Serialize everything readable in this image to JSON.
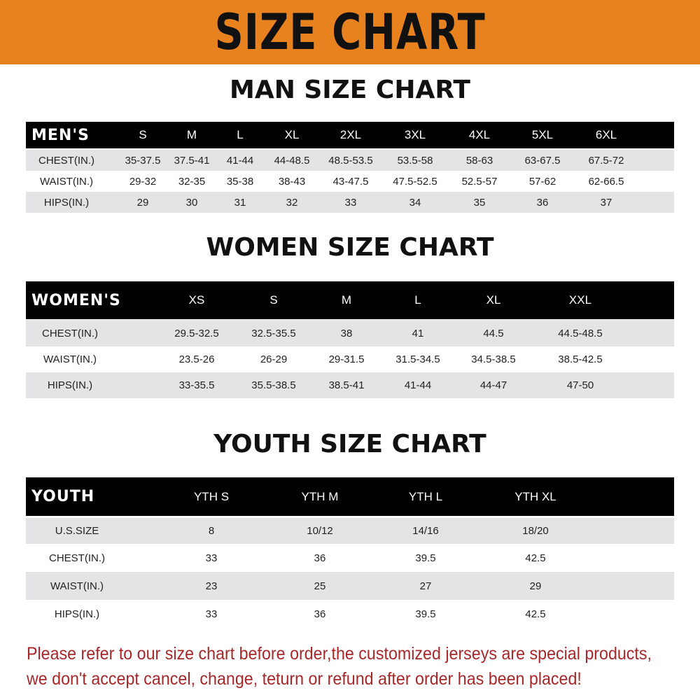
{
  "banner_title": "SIZE CHART",
  "colors": {
    "banner": "#e8821e",
    "header_row": "#000000",
    "stripe": "#e4e4e6",
    "note_text": "#a8282a"
  },
  "men": {
    "title": "MAN SIZE CHART",
    "header": [
      "MEN'S",
      "S",
      "M",
      "L",
      "XL",
      "2XL",
      "3XL",
      "4XL",
      "5XL",
      "6XL"
    ],
    "rows": [
      [
        "CHEST(IN.)",
        "35-37.5",
        "37.5-41",
        "41-44",
        "44-48.5",
        "48.5-53.5",
        "53.5-58",
        "58-63",
        "63-67.5",
        "67.5-72"
      ],
      [
        "WAIST(IN.)",
        "29-32",
        "32-35",
        "35-38",
        "38-43",
        "43-47.5",
        "47.5-52.5",
        "52.5-57",
        "57-62",
        "62-66.5"
      ],
      [
        "HIPS(IN.)",
        "29",
        "30",
        "31",
        "32",
        "33",
        "34",
        "35",
        "36",
        "37"
      ]
    ]
  },
  "women": {
    "title": "WOMEN SIZE CHART",
    "header": [
      "WOMEN'S",
      "XS",
      "S",
      "M",
      "L",
      "XL",
      "XXL"
    ],
    "rows": [
      [
        "CHEST(IN.)",
        "29.5-32.5",
        "32.5-35.5",
        "38",
        "41",
        "44.5",
        "44.5-48.5"
      ],
      [
        "WAIST(IN.)",
        "23.5-26",
        "26-29",
        "29-31.5",
        "31.5-34.5",
        "34.5-38.5",
        "38.5-42.5"
      ],
      [
        "HIPS(IN.)",
        "33-35.5",
        "35.5-38.5",
        "38.5-41",
        "41-44",
        "44-47",
        "47-50"
      ]
    ]
  },
  "youth": {
    "title": "YOUTH SIZE CHART",
    "header": [
      "YOUTH",
      "YTH S",
      "YTH M",
      "YTH L",
      "YTH XL"
    ],
    "rows": [
      [
        "U.S.SIZE",
        "8",
        "10/12",
        "14/16",
        "18/20"
      ],
      [
        "CHEST(IN.)",
        "33",
        "36",
        "39.5",
        "42.5"
      ],
      [
        "WAIST(IN.)",
        "23",
        "25",
        "27",
        "29"
      ],
      [
        "HIPS(IN.)",
        "33",
        "36",
        "39.5",
        "42.5"
      ]
    ]
  },
  "notice": {
    "line1": "Please refer to our size chart before order,the customized jerseys are special products,",
    "line2": "we don't accept cancel, change, teturn or refund after order has been placed!"
  }
}
